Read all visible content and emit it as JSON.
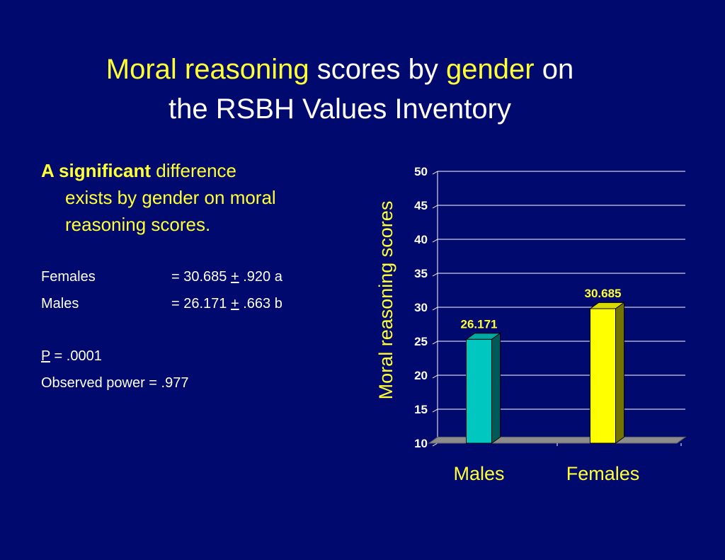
{
  "title": {
    "part1": "Moral reasoning",
    "part2": " scores by ",
    "part3": "gender",
    "part4": " on",
    "line2": "the RSBH Values Inventory"
  },
  "summary": {
    "lead_bold": "A significant",
    "lead_rest": " difference",
    "lead_line2": "exists by gender on moral",
    "lead_line3": "reasoning scores.",
    "stats": [
      {
        "label": "Females",
        "eq": "= 30.685 ",
        "pm": "+",
        "rest": " .920 a"
      },
      {
        "label": "Males",
        "eq": "= 26.171 ",
        "pm": "+",
        "rest": " .663 b"
      }
    ],
    "p_label": "P",
    "p_rest": " = .0001",
    "power": "Observed power = .977"
  },
  "chart_data": {
    "type": "bar",
    "categories": [
      "Males",
      "Females"
    ],
    "values": [
      26.171,
      30.685
    ],
    "data_labels": [
      "26.171",
      "30.685"
    ],
    "colors": [
      "#00c8c0",
      "#ffff00"
    ],
    "ylabel": "Moral reasoning scores",
    "xlabel": "",
    "ylim": [
      10,
      50
    ],
    "yticks": [
      10,
      15,
      20,
      25,
      30,
      35,
      40,
      45,
      50
    ],
    "grid": true
  },
  "colors": {
    "background": "#000a6e",
    "accent": "#ffff33",
    "text": "#ffffff"
  }
}
